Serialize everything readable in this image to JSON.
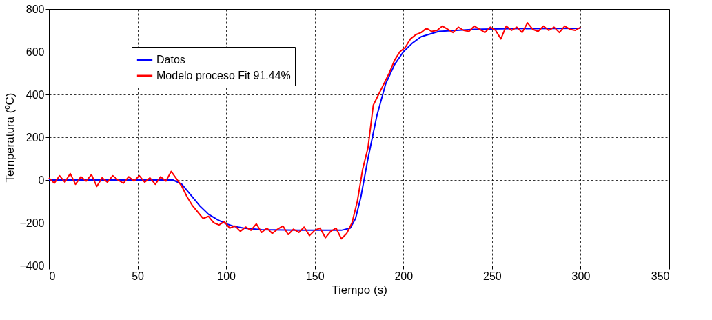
{
  "chart_data": {
    "type": "line",
    "xlabel": "Tiempo (s)",
    "ylabel": "Temperatura (ºC)",
    "xlim": [
      0,
      350
    ],
    "xticks": [
      0,
      50,
      100,
      150,
      200,
      250,
      300,
      350
    ],
    "ylim": [
      -400,
      800
    ],
    "yticks": [
      -400,
      -200,
      0,
      200,
      400,
      600,
      800
    ],
    "grid": true,
    "legend": "top left",
    "line_style": "solid",
    "series": [
      {
        "name": "Datos",
        "color": "#0000ff",
        "x": [
          0,
          70,
          75,
          80,
          85,
          90,
          95,
          100,
          105,
          110,
          120,
          140,
          165,
          170,
          173,
          176,
          180,
          185,
          190,
          195,
          200,
          205,
          210,
          220,
          240,
          260,
          300
        ],
        "values": [
          0,
          0,
          -20,
          -70,
          -120,
          -160,
          -185,
          -205,
          -218,
          -225,
          -232,
          -235,
          -235,
          -225,
          -180,
          -80,
          100,
          300,
          450,
          540,
          600,
          640,
          670,
          695,
          705,
          708,
          710
        ]
      },
      {
        "name": "Modelo proceso Fit 91.44%",
        "color": "#ff0000",
        "x": [
          0,
          3,
          6,
          9,
          12,
          15,
          18,
          21,
          24,
          27,
          30,
          33,
          36,
          39,
          42,
          45,
          48,
          51,
          54,
          57,
          60,
          63,
          66,
          69,
          72,
          75,
          78,
          81,
          84,
          87,
          90,
          93,
          96,
          99,
          102,
          105,
          108,
          111,
          114,
          117,
          120,
          123,
          126,
          129,
          132,
          135,
          138,
          141,
          144,
          147,
          150,
          153,
          156,
          159,
          162,
          165,
          168,
          171,
          174,
          177,
          180,
          183,
          186,
          189,
          192,
          195,
          198,
          201,
          204,
          207,
          210,
          213,
          216,
          219,
          222,
          225,
          228,
          231,
          234,
          237,
          240,
          243,
          246,
          249,
          252,
          255,
          258,
          261,
          264,
          267,
          270,
          273,
          276,
          279,
          282,
          285,
          288,
          291,
          294,
          297,
          300
        ],
        "values": [
          10,
          -15,
          20,
          -10,
          30,
          -20,
          15,
          -5,
          25,
          -30,
          10,
          -10,
          20,
          0,
          -15,
          15,
          -5,
          20,
          -10,
          10,
          -20,
          15,
          -5,
          40,
          5,
          -30,
          -80,
          -120,
          -150,
          -180,
          -170,
          -200,
          -210,
          -195,
          -225,
          -215,
          -240,
          -220,
          -235,
          -205,
          -245,
          -225,
          -250,
          -230,
          -215,
          -255,
          -230,
          -245,
          -220,
          -260,
          -235,
          -225,
          -270,
          -240,
          -225,
          -275,
          -250,
          -200,
          -100,
          50,
          150,
          350,
          400,
          450,
          500,
          560,
          600,
          620,
          660,
          680,
          690,
          710,
          695,
          700,
          720,
          705,
          690,
          715,
          700,
          695,
          720,
          705,
          690,
          715,
          700,
          660,
          720,
          700,
          715,
          690,
          735,
          705,
          695,
          720,
          700,
          715,
          690,
          720,
          705,
          700,
          715
        ]
      }
    ]
  }
}
